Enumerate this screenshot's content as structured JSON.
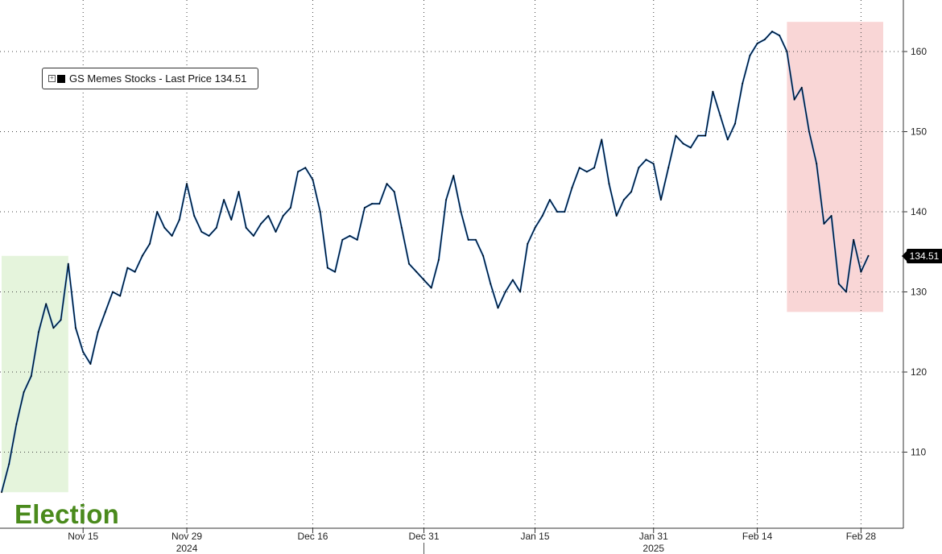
{
  "legend": {
    "label": "GS Memes Stocks - Last Price 134.51"
  },
  "last_value_label": "134.51",
  "annotation": {
    "text": "Election",
    "color": "#4a8a1c"
  },
  "colors": {
    "line_black": "#000000",
    "line_blue": "#2f7fd6",
    "election_shade": "#e5f4dc",
    "selloff_shade": "#f9d6d6",
    "grid": "#444444"
  },
  "chart_data": {
    "type": "line",
    "title": "",
    "xlabel": "",
    "ylabel": "",
    "ylim": [
      100,
      166
    ],
    "y_ticks": [
      110,
      120,
      130,
      140,
      150,
      160
    ],
    "y_axis_side": "right",
    "grid": true,
    "legend_placement": "top-left",
    "x_tick_labels": [
      {
        "date": "2024-11-15",
        "label": "Nov 15"
      },
      {
        "date": "2024-11-29",
        "label": "Nov 29"
      },
      {
        "date": "2024-12-16",
        "label": "Dec 16"
      },
      {
        "date": "2024-12-31",
        "label": "Dec 31"
      },
      {
        "date": "2025-01-15",
        "label": "Jan 15"
      },
      {
        "date": "2025-01-31",
        "label": "Jan 31"
      },
      {
        "date": "2025-02-14",
        "label": "Feb 14"
      },
      {
        "date": "2025-02-28",
        "label": "Feb 28"
      }
    ],
    "year_labels": [
      {
        "date": "2024-11-29",
        "label": "2024"
      },
      {
        "date": "2025-01-31",
        "label": "2025"
      }
    ],
    "shaded_regions": [
      {
        "name": "election",
        "x": [
          "2024-11-04",
          "2024-11-13"
        ],
        "y": [
          105,
          134.5
        ]
      },
      {
        "name": "selloff",
        "x": [
          "2025-02-18",
          "2025-03-03"
        ],
        "y": [
          127.5,
          163.7
        ]
      }
    ],
    "series": [
      {
        "name": "GS Memes Stocks - Last Price",
        "last": 134.51,
        "points": [
          [
            "2024-11-04",
            105.0
          ],
          [
            "2024-11-05",
            108.5
          ],
          [
            "2024-11-06",
            113.5
          ],
          [
            "2024-11-07",
            117.5
          ],
          [
            "2024-11-08",
            119.5
          ],
          [
            "2024-11-09",
            125.0
          ],
          [
            "2024-11-10",
            128.5
          ],
          [
            "2024-11-11",
            125.5
          ],
          [
            "2024-11-12",
            126.5
          ],
          [
            "2024-11-13",
            133.5
          ],
          [
            "2024-11-14",
            125.5
          ],
          [
            "2024-11-15",
            122.5
          ],
          [
            "2024-11-16",
            121.0
          ],
          [
            "2024-11-17",
            125.0
          ],
          [
            "2024-11-18",
            127.5
          ],
          [
            "2024-11-19",
            130.0
          ],
          [
            "2024-11-20",
            129.5
          ],
          [
            "2024-11-21",
            133.0
          ],
          [
            "2024-11-22",
            132.5
          ],
          [
            "2024-11-23",
            134.5
          ],
          [
            "2024-11-24",
            136.0
          ],
          [
            "2024-11-25",
            140.0
          ],
          [
            "2024-11-26",
            138.0
          ],
          [
            "2024-11-27",
            137.0
          ],
          [
            "2024-11-28",
            139.0
          ],
          [
            "2024-11-29",
            143.5
          ],
          [
            "2024-11-30",
            139.5
          ],
          [
            "2024-12-01",
            137.5
          ],
          [
            "2024-12-02",
            137.0
          ],
          [
            "2024-12-03",
            138.0
          ],
          [
            "2024-12-04",
            141.5
          ],
          [
            "2024-12-05",
            139.0
          ],
          [
            "2024-12-06",
            142.5
          ],
          [
            "2024-12-07",
            138.0
          ],
          [
            "2024-12-08",
            137.0
          ],
          [
            "2024-12-09",
            138.5
          ],
          [
            "2024-12-10",
            139.5
          ],
          [
            "2024-12-11",
            137.5
          ],
          [
            "2024-12-12",
            139.5
          ],
          [
            "2024-12-13",
            140.5
          ],
          [
            "2024-12-14",
            145.0
          ],
          [
            "2024-12-15",
            145.5
          ],
          [
            "2024-12-16",
            144.0
          ],
          [
            "2024-12-17",
            140.0
          ],
          [
            "2024-12-18",
            133.0
          ],
          [
            "2024-12-19",
            132.5
          ],
          [
            "2024-12-20",
            136.5
          ],
          [
            "2024-12-21",
            137.0
          ],
          [
            "2024-12-22",
            136.5
          ],
          [
            "2024-12-23",
            140.5
          ],
          [
            "2024-12-24",
            141.0
          ],
          [
            "2024-12-25",
            141.0
          ],
          [
            "2024-12-26",
            143.5
          ],
          [
            "2024-12-27",
            142.5
          ],
          [
            "2024-12-28",
            138.0
          ],
          [
            "2024-12-29",
            133.5
          ],
          [
            "2024-12-30",
            132.5
          ],
          [
            "2024-12-31",
            131.5
          ],
          [
            "2025-01-01",
            130.5
          ],
          [
            "2025-01-02",
            134.0
          ],
          [
            "2025-01-03",
            141.5
          ],
          [
            "2025-01-04",
            144.5
          ],
          [
            "2025-01-05",
            140.0
          ],
          [
            "2025-01-06",
            136.5
          ],
          [
            "2025-01-07",
            136.5
          ],
          [
            "2025-01-08",
            134.5
          ],
          [
            "2025-01-09",
            131.0
          ],
          [
            "2025-01-10",
            128.0
          ],
          [
            "2025-01-11",
            130.0
          ],
          [
            "2025-01-12",
            131.5
          ],
          [
            "2025-01-13",
            130.0
          ],
          [
            "2025-01-14",
            136.0
          ],
          [
            "2025-01-15",
            138.0
          ],
          [
            "2025-01-16",
            139.5
          ],
          [
            "2025-01-17",
            141.5
          ],
          [
            "2025-01-18",
            140.0
          ],
          [
            "2025-01-19",
            140.0
          ],
          [
            "2025-01-20",
            143.0
          ],
          [
            "2025-01-21",
            145.5
          ],
          [
            "2025-01-22",
            145.0
          ],
          [
            "2025-01-23",
            145.5
          ],
          [
            "2025-01-24",
            149.0
          ],
          [
            "2025-01-25",
            143.5
          ],
          [
            "2025-01-26",
            139.5
          ],
          [
            "2025-01-27",
            141.5
          ],
          [
            "2025-01-28",
            142.5
          ],
          [
            "2025-01-29",
            145.5
          ],
          [
            "2025-01-30",
            146.5
          ],
          [
            "2025-01-31",
            146.0
          ],
          [
            "2025-02-01",
            141.5
          ],
          [
            "2025-02-02",
            145.5
          ],
          [
            "2025-02-03",
            149.5
          ],
          [
            "2025-02-04",
            148.5
          ],
          [
            "2025-02-05",
            148.0
          ],
          [
            "2025-02-06",
            149.5
          ],
          [
            "2025-02-07",
            149.5
          ],
          [
            "2025-02-08",
            155.0
          ],
          [
            "2025-02-09",
            152.0
          ],
          [
            "2025-02-10",
            149.0
          ],
          [
            "2025-02-11",
            151.0
          ],
          [
            "2025-02-12",
            156.0
          ],
          [
            "2025-02-13",
            159.5
          ],
          [
            "2025-02-14",
            161.0
          ],
          [
            "2025-02-15",
            161.5
          ],
          [
            "2025-02-16",
            162.5
          ],
          [
            "2025-02-17",
            162.0
          ],
          [
            "2025-02-18",
            160.0
          ],
          [
            "2025-02-19",
            154.0
          ],
          [
            "2025-02-20",
            155.5
          ],
          [
            "2025-02-21",
            150.0
          ],
          [
            "2025-02-22",
            146.0
          ],
          [
            "2025-02-23",
            138.5
          ],
          [
            "2025-02-24",
            139.5
          ],
          [
            "2025-02-25",
            131.0
          ],
          [
            "2025-02-26",
            130.0
          ],
          [
            "2025-02-27",
            136.5
          ],
          [
            "2025-02-28",
            132.5
          ],
          [
            "2025-03-01",
            134.51
          ]
        ]
      }
    ]
  }
}
